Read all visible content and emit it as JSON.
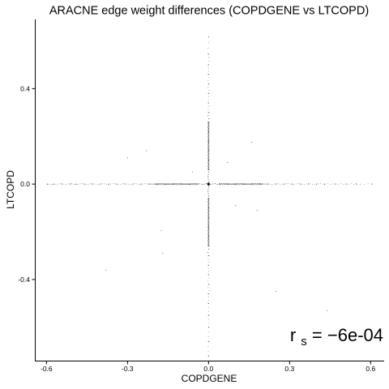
{
  "chart_data": {
    "type": "scatter",
    "title": "ARACNE edge weight differences (COPDGENE vs LTCOPD)",
    "xlabel": "COPDGENE",
    "ylabel": "LTCOPD",
    "xlim": [
      -0.64,
      0.65
    ],
    "ylim": [
      -0.74,
      0.69
    ],
    "x_ticks": [
      -0.6,
      -0.3,
      0.0,
      0.3,
      0.6
    ],
    "x_tick_labels": [
      "-0.6",
      "-0.3",
      "0.0",
      "0.3",
      "0.6"
    ],
    "y_ticks": [
      -0.4,
      0.0,
      0.4
    ],
    "y_tick_labels": [
      "-0.4",
      "0.0",
      "0.4"
    ],
    "grid": false,
    "point_color": "#000000",
    "annotation": {
      "base": "r",
      "subscript": "s",
      "equals": " = ",
      "value": "−6e-04"
    },
    "series": [
      {
        "x_axis_points": [
          [
            -0.597,
            0.0
          ],
          [
            -0.573,
            0.0
          ],
          [
            -0.543,
            0.0
          ],
          [
            -0.512,
            0.0
          ],
          [
            -0.49,
            0.0
          ],
          [
            -0.46,
            0.0
          ],
          [
            -0.43,
            0.0
          ],
          [
            -0.4,
            0.0
          ],
          [
            -0.37,
            0.0
          ],
          [
            -0.34,
            0.0
          ],
          [
            -0.31,
            0.0
          ],
          [
            -0.28,
            0.0
          ],
          [
            -0.25,
            0.0
          ],
          [
            -0.22,
            0.0
          ],
          [
            -0.19,
            0.0
          ],
          [
            -0.16,
            0.0
          ],
          [
            -0.13,
            0.0
          ],
          [
            -0.1,
            0.0
          ],
          [
            -0.07,
            0.0
          ],
          [
            -0.04,
            0.0
          ],
          [
            0.04,
            0.0
          ],
          [
            0.07,
            0.0
          ],
          [
            0.1,
            0.0
          ],
          [
            0.13,
            0.0
          ],
          [
            0.16,
            0.0
          ],
          [
            0.19,
            0.0
          ],
          [
            0.22,
            0.0
          ],
          [
            0.25,
            0.0
          ],
          [
            0.28,
            0.0
          ],
          [
            0.31,
            0.0
          ],
          [
            0.34,
            0.0
          ],
          [
            0.37,
            0.0
          ],
          [
            0.4,
            0.0
          ],
          [
            0.43,
            0.0
          ],
          [
            0.47,
            0.0
          ],
          [
            0.51,
            0.0
          ],
          [
            0.547,
            0.0
          ],
          [
            0.605,
            0.0
          ]
        ],
        "y_axis_points": [
          [
            0.0,
            0.617
          ],
          [
            0.0,
            0.545
          ],
          [
            0.0,
            0.5
          ],
          [
            0.0,
            0.46
          ],
          [
            0.0,
            0.42
          ],
          [
            0.0,
            0.38
          ],
          [
            0.0,
            0.34
          ],
          [
            0.0,
            0.3
          ],
          [
            0.0,
            0.26
          ],
          [
            0.0,
            0.22
          ],
          [
            0.0,
            0.18
          ],
          [
            0.0,
            0.14
          ],
          [
            0.0,
            0.1
          ],
          [
            0.0,
            0.06
          ],
          [
            0.0,
            -0.06
          ],
          [
            0.0,
            -0.1
          ],
          [
            0.0,
            -0.14
          ],
          [
            0.0,
            -0.18
          ],
          [
            0.0,
            -0.22
          ],
          [
            0.0,
            -0.26
          ],
          [
            0.0,
            -0.3
          ],
          [
            0.0,
            -0.34
          ],
          [
            0.0,
            -0.38
          ],
          [
            0.0,
            -0.42
          ],
          [
            0.0,
            -0.46
          ],
          [
            0.0,
            -0.5
          ],
          [
            0.0,
            -0.55
          ],
          [
            0.0,
            -0.6
          ],
          [
            0.0,
            -0.66
          ],
          [
            0.0,
            -0.72
          ]
        ],
        "scattered_points": [
          [
            -0.23,
            0.14
          ],
          [
            0.16,
            0.175
          ],
          [
            -0.175,
            -0.195
          ],
          [
            0.1,
            -0.09
          ],
          [
            -0.38,
            -0.36
          ],
          [
            0.25,
            -0.45
          ],
          [
            0.44,
            -0.53
          ],
          [
            0.18,
            -0.11
          ],
          [
            -0.17,
            -0.29
          ],
          [
            -0.3,
            0.11
          ],
          [
            0.07,
            0.09
          ],
          [
            -0.06,
            0.05
          ]
        ]
      }
    ]
  }
}
